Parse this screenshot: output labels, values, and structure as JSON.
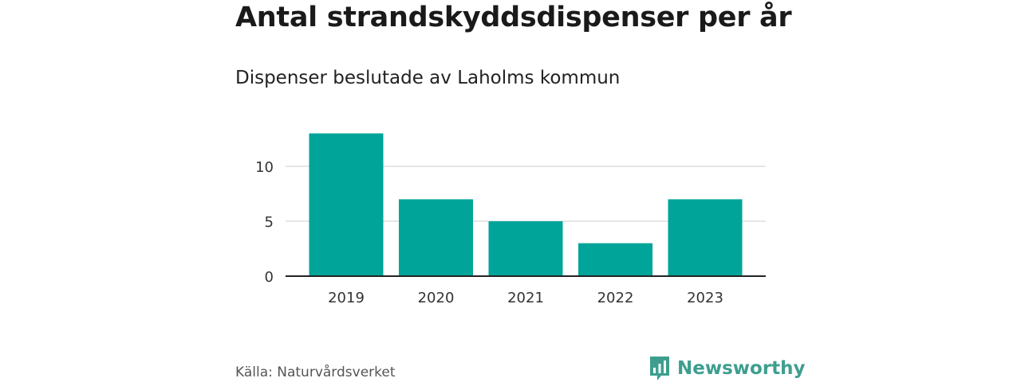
{
  "header": {
    "title": "Antal strandskyddsdispenser per år",
    "subtitle": "Dispenser beslutade av Laholms kommun"
  },
  "footer": {
    "source": "Källa: Naturvårdsverket",
    "brand": "Newsworthy"
  },
  "colors": {
    "bar": "#00a499",
    "brand": "#3d9e8f",
    "gridline": "#dddddd",
    "axis": "#222222"
  },
  "icons": {
    "brand_logo": "bar-chart-speech-bubble-icon"
  },
  "chart_data": {
    "type": "bar",
    "title": "Antal strandskyddsdispenser per år",
    "subtitle": "Dispenser beslutade av Laholms kommun",
    "categories": [
      "2019",
      "2020",
      "2021",
      "2022",
      "2023"
    ],
    "values": [
      13,
      7,
      5,
      3,
      7
    ],
    "xlabel": "",
    "ylabel": "",
    "ylim": [
      0,
      13
    ],
    "yticks": [
      0,
      5,
      10
    ],
    "ytick_labels": [
      "0",
      "5",
      "10"
    ],
    "grid": true,
    "legend": "none"
  }
}
